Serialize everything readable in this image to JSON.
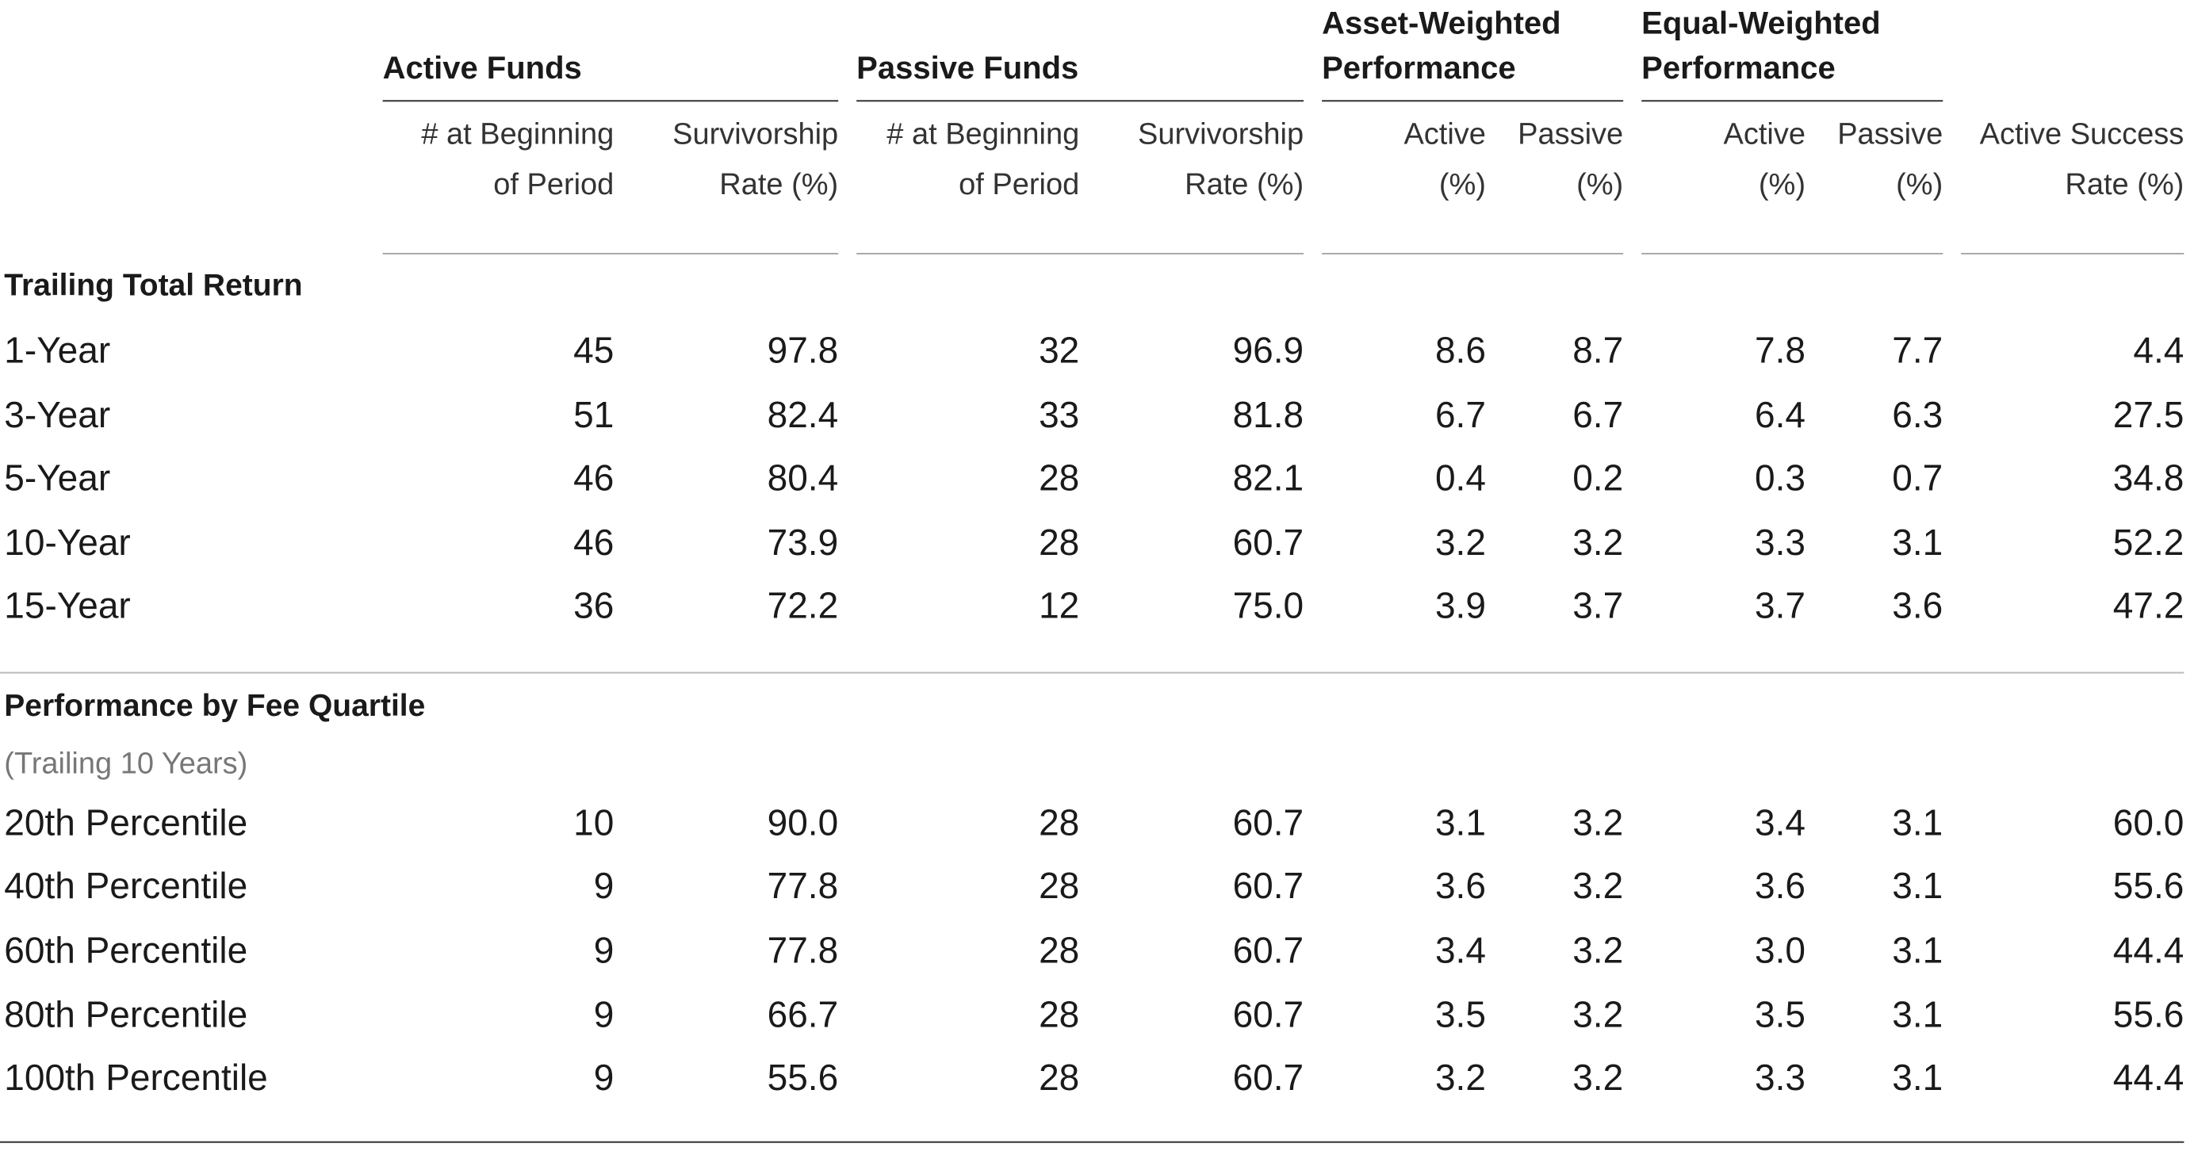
{
  "table": {
    "column_groups": [
      {
        "lines": [
          "Active Funds"
        ]
      },
      {
        "lines": [
          "Passive Funds"
        ]
      },
      {
        "lines": [
          "Asset-Weighted",
          "Performance"
        ]
      },
      {
        "lines": [
          "Equal-Weighted",
          "Performance"
        ]
      }
    ],
    "columns": [
      [
        "# at Beginning",
        "of Period"
      ],
      [
        "Survivorship",
        "Rate (%)"
      ],
      [
        "# at Beginning",
        "of Period"
      ],
      [
        "Survivorship",
        "Rate (%)"
      ],
      [
        "Active",
        "(%)"
      ],
      [
        "Passive",
        "(%)"
      ],
      [
        "Active",
        "(%)"
      ],
      [
        "Passive",
        "(%)"
      ],
      [
        "Active Success",
        "Rate (%)"
      ]
    ],
    "sections": [
      {
        "title": "Trailing Total Return",
        "rows": [
          {
            "label": "1-Year",
            "values": [
              "45",
              "97.8",
              "32",
              "96.9",
              "8.6",
              "8.7",
              "7.8",
              "7.7",
              "4.4"
            ]
          },
          {
            "label": "3-Year",
            "values": [
              "51",
              "82.4",
              "33",
              "81.8",
              "6.7",
              "6.7",
              "6.4",
              "6.3",
              "27.5"
            ]
          },
          {
            "label": "5-Year",
            "values": [
              "46",
              "80.4",
              "28",
              "82.1",
              "0.4",
              "0.2",
              "0.3",
              "0.7",
              "34.8"
            ]
          },
          {
            "label": "10-Year",
            "values": [
              "46",
              "73.9",
              "28",
              "60.7",
              "3.2",
              "3.2",
              "3.3",
              "3.1",
              "52.2"
            ]
          },
          {
            "label": "15-Year",
            "values": [
              "36",
              "72.2",
              "12",
              "75.0",
              "3.9",
              "3.7",
              "3.7",
              "3.6",
              "47.2"
            ]
          }
        ]
      },
      {
        "title": "Performance by Fee Quartile",
        "subtitle": "(Trailing 10 Years)",
        "rows": [
          {
            "label": "20th Percentile",
            "values": [
              "10",
              "90.0",
              "28",
              "60.7",
              "3.1",
              "3.2",
              "3.4",
              "3.1",
              "60.0"
            ]
          },
          {
            "label": "40th Percentile",
            "values": [
              "9",
              "77.8",
              "28",
              "60.7",
              "3.6",
              "3.2",
              "3.6",
              "3.1",
              "55.6"
            ]
          },
          {
            "label": "60th Percentile",
            "values": [
              "9",
              "77.8",
              "28",
              "60.7",
              "3.4",
              "3.2",
              "3.0",
              "3.1",
              "44.4"
            ]
          },
          {
            "label": "80th Percentile",
            "values": [
              "9",
              "66.7",
              "28",
              "60.7",
              "3.5",
              "3.2",
              "3.5",
              "3.1",
              "55.6"
            ]
          },
          {
            "label": "100th Percentile",
            "values": [
              "9",
              "55.6",
              "28",
              "60.7",
              "3.2",
              "3.2",
              "3.3",
              "3.1",
              "44.4"
            ]
          }
        ]
      }
    ]
  }
}
